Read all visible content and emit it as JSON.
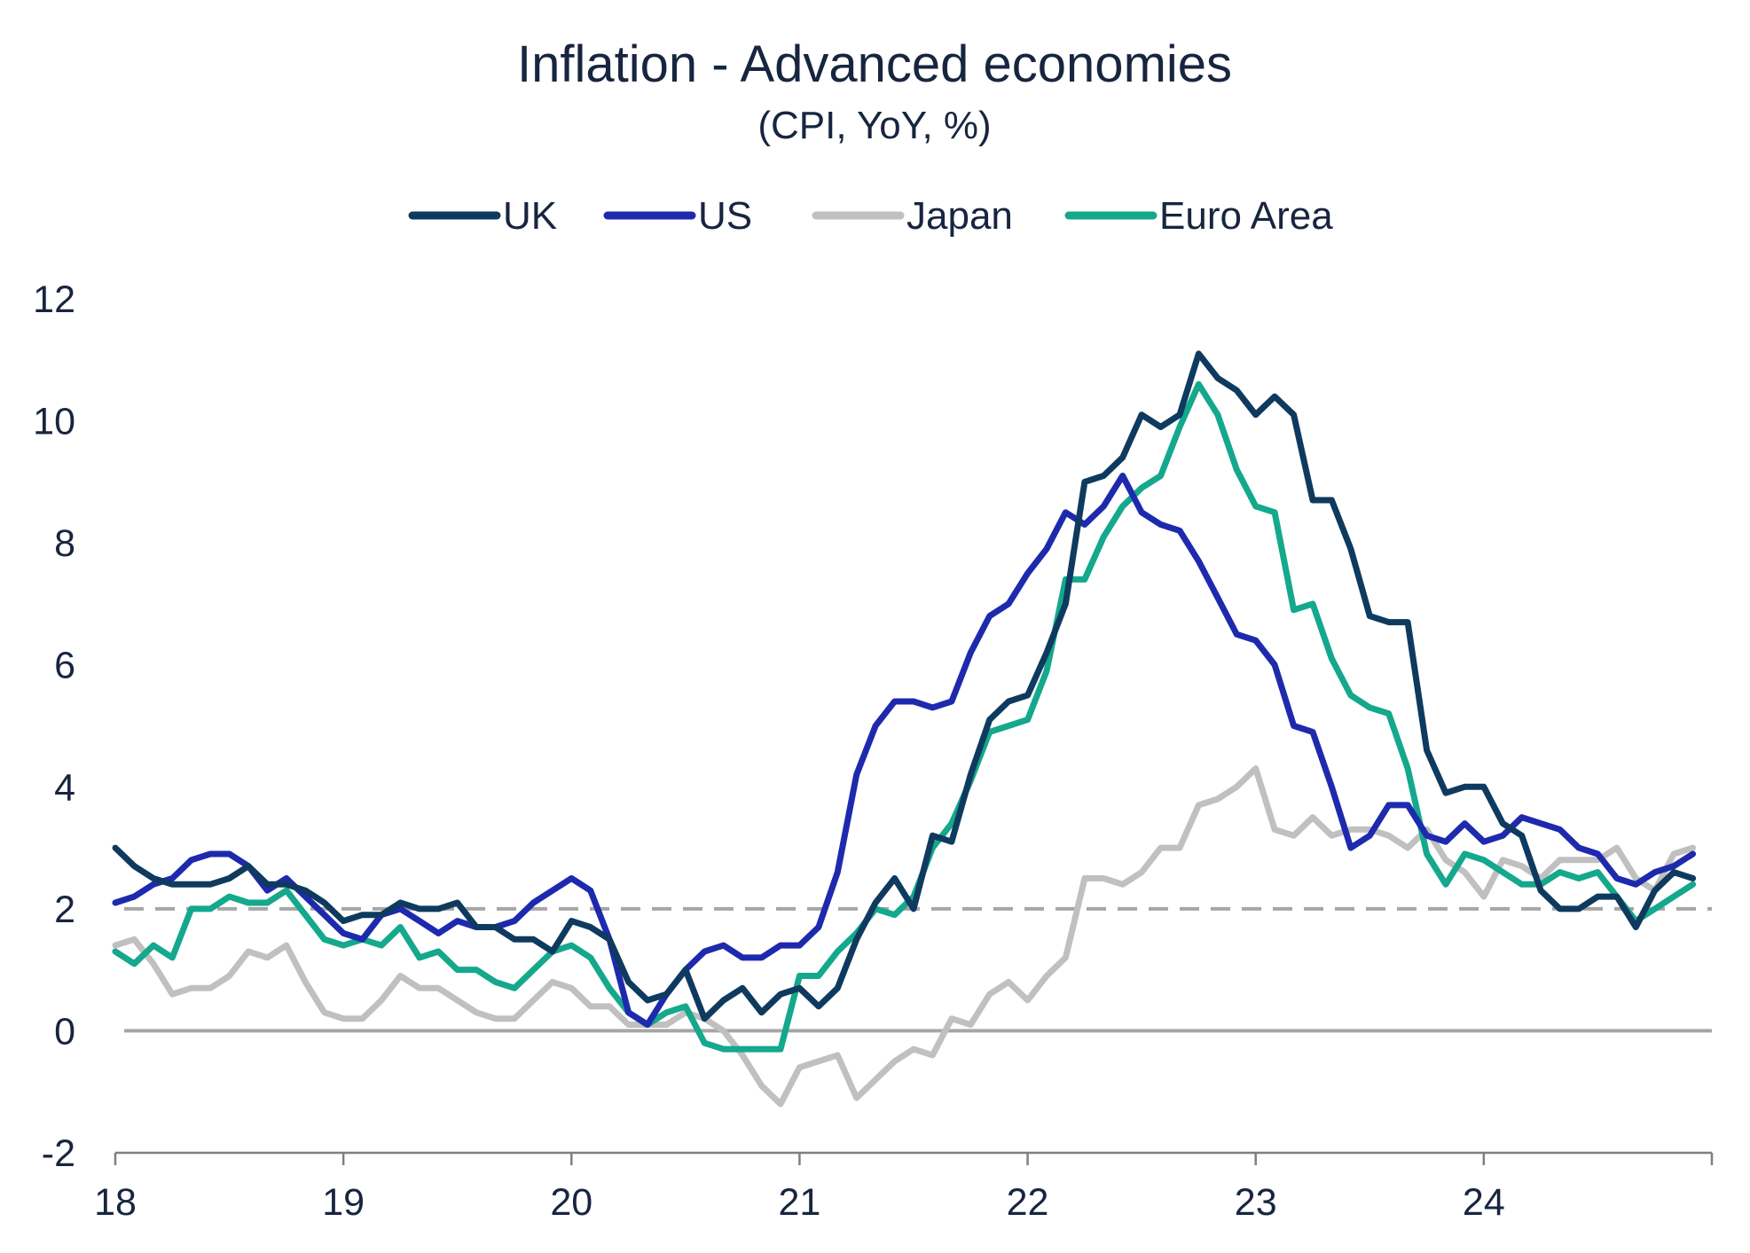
{
  "chart_data": {
    "type": "line",
    "title": "Inflation - Advanced economies",
    "subtitle": "(CPI, YoY, %)",
    "xlabel": "",
    "ylabel": "",
    "ylim": [
      -2,
      12
    ],
    "xlim": [
      2018.0,
      2025.0
    ],
    "x_ticks": [
      2018,
      2019,
      2020,
      2021,
      2022,
      2023,
      2024
    ],
    "x_tick_labels": [
      "18",
      "19",
      "20",
      "21",
      "22",
      "23",
      "24"
    ],
    "y_ticks": [
      -2,
      0,
      2,
      4,
      6,
      8,
      10,
      12
    ],
    "y_tick_labels": [
      "-2",
      "0",
      "2",
      "4",
      "6",
      "8",
      "10",
      "12"
    ],
    "grid": false,
    "legend_position": "top-center",
    "reference_lines": [
      {
        "y": 0,
        "style": "solid",
        "color": "#a6a6a6"
      },
      {
        "y": 2,
        "style": "dashed",
        "color": "#a6a6a6"
      }
    ],
    "x_start": "2018-01",
    "frequency": "monthly",
    "series": [
      {
        "name": "UK",
        "color": "#0f3a5f",
        "values": [
          3.0,
          2.7,
          2.5,
          2.4,
          2.4,
          2.4,
          2.5,
          2.7,
          2.4,
          2.4,
          2.3,
          2.1,
          1.8,
          1.9,
          1.9,
          2.1,
          2.0,
          2.0,
          2.1,
          1.7,
          1.7,
          1.5,
          1.5,
          1.3,
          1.8,
          1.7,
          1.5,
          0.8,
          0.5,
          0.6,
          1.0,
          0.2,
          0.5,
          0.7,
          0.3,
          0.6,
          0.7,
          0.4,
          0.7,
          1.5,
          2.1,
          2.5,
          2.0,
          3.2,
          3.1,
          4.2,
          5.1,
          5.4,
          5.5,
          6.2,
          7.0,
          9.0,
          9.1,
          9.4,
          10.1,
          9.9,
          10.1,
          11.1,
          10.7,
          10.5,
          10.1,
          10.4,
          10.1,
          8.7,
          8.7,
          7.9,
          6.8,
          6.7,
          6.7,
          4.6,
          3.9,
          4.0,
          4.0,
          3.4,
          3.2,
          2.3,
          2.0,
          2.0,
          2.2,
          2.2,
          1.7,
          2.3,
          2.6,
          2.5
        ]
      },
      {
        "name": "US",
        "color": "#1e2aad",
        "values": [
          2.1,
          2.2,
          2.4,
          2.5,
          2.8,
          2.9,
          2.9,
          2.7,
          2.3,
          2.5,
          2.2,
          1.9,
          1.6,
          1.5,
          1.9,
          2.0,
          1.8,
          1.6,
          1.8,
          1.7,
          1.7,
          1.8,
          2.1,
          2.3,
          2.5,
          2.3,
          1.5,
          0.3,
          0.1,
          0.6,
          1.0,
          1.3,
          1.4,
          1.2,
          1.2,
          1.4,
          1.4,
          1.7,
          2.6,
          4.2,
          5.0,
          5.4,
          5.4,
          5.3,
          5.4,
          6.2,
          6.8,
          7.0,
          7.5,
          7.9,
          8.5,
          8.3,
          8.6,
          9.1,
          8.5,
          8.3,
          8.2,
          7.7,
          7.1,
          6.5,
          6.4,
          6.0,
          5.0,
          4.9,
          4.0,
          3.0,
          3.2,
          3.7,
          3.7,
          3.2,
          3.1,
          3.4,
          3.1,
          3.2,
          3.5,
          3.4,
          3.3,
          3.0,
          2.9,
          2.5,
          2.4,
          2.6,
          2.7,
          2.9
        ]
      },
      {
        "name": "Japan",
        "color": "#c0c0c0",
        "values": [
          1.4,
          1.5,
          1.1,
          0.6,
          0.7,
          0.7,
          0.9,
          1.3,
          1.2,
          1.4,
          0.8,
          0.3,
          0.2,
          0.2,
          0.5,
          0.9,
          0.7,
          0.7,
          0.5,
          0.3,
          0.2,
          0.2,
          0.5,
          0.8,
          0.7,
          0.4,
          0.4,
          0.1,
          0.1,
          0.1,
          0.3,
          0.2,
          0.0,
          -0.4,
          -0.9,
          -1.2,
          -0.6,
          -0.5,
          -0.4,
          -1.1,
          -0.8,
          -0.5,
          -0.3,
          -0.4,
          0.2,
          0.1,
          0.6,
          0.8,
          0.5,
          0.9,
          1.2,
          2.5,
          2.5,
          2.4,
          2.6,
          3.0,
          3.0,
          3.7,
          3.8,
          4.0,
          4.3,
          3.3,
          3.2,
          3.5,
          3.2,
          3.3,
          3.3,
          3.2,
          3.0,
          3.3,
          2.8,
          2.6,
          2.2,
          2.8,
          2.7,
          2.5,
          2.8,
          2.8,
          2.8,
          3.0,
          2.5,
          2.3,
          2.9,
          3.0
        ]
      },
      {
        "name": "Euro Area",
        "color": "#14a88c",
        "values": [
          1.3,
          1.1,
          1.4,
          1.2,
          2.0,
          2.0,
          2.2,
          2.1,
          2.1,
          2.3,
          1.9,
          1.5,
          1.4,
          1.5,
          1.4,
          1.7,
          1.2,
          1.3,
          1.0,
          1.0,
          0.8,
          0.7,
          1.0,
          1.3,
          1.4,
          1.2,
          0.7,
          0.3,
          0.1,
          0.3,
          0.4,
          -0.2,
          -0.3,
          -0.3,
          -0.3,
          -0.3,
          0.9,
          0.9,
          1.3,
          1.6,
          2.0,
          1.9,
          2.2,
          3.0,
          3.4,
          4.1,
          4.9,
          5.0,
          5.1,
          5.9,
          7.4,
          7.4,
          8.1,
          8.6,
          8.9,
          9.1,
          9.9,
          10.6,
          10.1,
          9.2,
          8.6,
          8.5,
          6.9,
          7.0,
          6.1,
          5.5,
          5.3,
          5.2,
          4.3,
          2.9,
          2.4,
          2.9,
          2.8,
          2.6,
          2.4,
          2.4,
          2.6,
          2.5,
          2.6,
          2.2,
          1.8,
          2.0,
          2.2,
          2.4
        ]
      }
    ]
  }
}
